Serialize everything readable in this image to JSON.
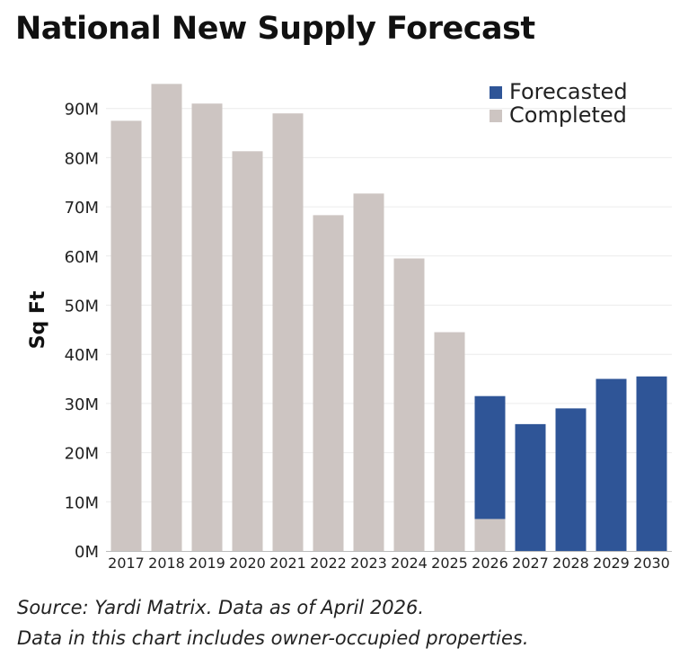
{
  "title": "National New Supply Forecast",
  "source_lines": [
    "Source: Yardi Matrix. Data as of April 2026.",
    "Data in this chart includes owner-occupied properties."
  ],
  "chart_data": {
    "type": "bar",
    "stacked": true,
    "categories": [
      "2017",
      "2018",
      "2019",
      "2020",
      "2021",
      "2022",
      "2023",
      "2024",
      "2025",
      "2026",
      "2027",
      "2028",
      "2029",
      "2030"
    ],
    "series": [
      {
        "name": "Completed",
        "color": "#cdc5c2",
        "values": [
          87.5,
          95,
          91,
          81.3,
          89,
          68.3,
          72.7,
          59.5,
          44.5,
          6.5,
          0,
          0,
          0,
          0
        ]
      },
      {
        "name": "Forecasted",
        "color": "#2f5597",
        "values": [
          0,
          0,
          0,
          0,
          0,
          0,
          0,
          0,
          0,
          25,
          25.8,
          29,
          35,
          35.5
        ]
      }
    ],
    "legend_order": [
      "Forecasted",
      "Completed"
    ],
    "legend_position": "top-right",
    "ylabel": "Sq Ft",
    "xlabel": "",
    "ylim": [
      0,
      95
    ],
    "yticks": [
      0,
      10,
      20,
      30,
      40,
      50,
      60,
      70,
      80,
      90
    ],
    "ytick_labels": [
      "0M",
      "10M",
      "20M",
      "30M",
      "40M",
      "50M",
      "60M",
      "70M",
      "80M",
      "90M"
    ],
    "grid": "horizontal"
  }
}
